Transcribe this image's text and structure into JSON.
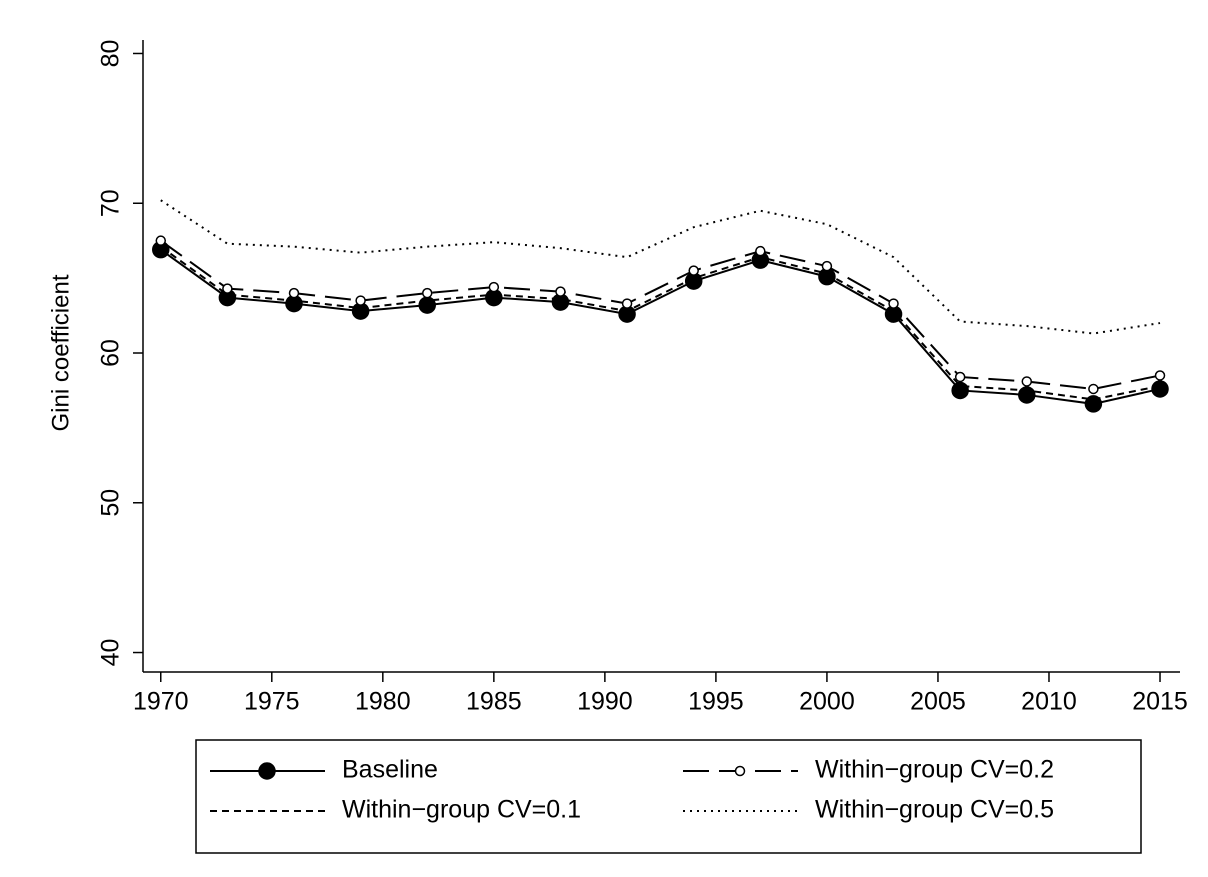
{
  "chart_data": {
    "type": "line",
    "ylabel": "Gini coefficient",
    "x": [
      1970,
      1973,
      1976,
      1979,
      1982,
      1985,
      1988,
      1991,
      1994,
      1997,
      2000,
      2003,
      2006,
      2009,
      2012,
      2015
    ],
    "xlim": [
      1969.2,
      2015.9
    ],
    "xticks": [
      1970,
      1975,
      1980,
      1985,
      1990,
      1995,
      2000,
      2005,
      2010,
      2015
    ],
    "ylim": [
      38.7,
      80.9
    ],
    "yticks": [
      40,
      50,
      60,
      70,
      80
    ],
    "grid": false,
    "legend": "bottom",
    "series": [
      {
        "name": "Baseline",
        "color": "#000000",
        "dash": "solid",
        "marker": "filled",
        "values": [
          66.9,
          63.7,
          63.3,
          62.8,
          63.2,
          63.7,
          63.4,
          62.6,
          64.8,
          66.2,
          65.1,
          62.6,
          57.5,
          57.2,
          56.6,
          57.6
        ]
      },
      {
        "name": "Within−group CV=0.2",
        "color": "#000000",
        "dash": "longdash",
        "marker": "hollow",
        "values": [
          67.5,
          64.3,
          64.0,
          63.5,
          64.0,
          64.4,
          64.1,
          63.3,
          65.5,
          66.8,
          65.8,
          63.3,
          58.4,
          58.1,
          57.6,
          58.5
        ]
      },
      {
        "name": "Within−group CV=0.1",
        "color": "#000000",
        "dash": "shortdash",
        "marker": "none",
        "values": [
          67.1,
          63.9,
          63.5,
          63.0,
          63.5,
          63.9,
          63.6,
          62.8,
          65.0,
          66.4,
          65.3,
          62.8,
          57.8,
          57.5,
          56.9,
          57.8
        ]
      },
      {
        "name": "Within−group CV=0.5",
        "color": "#000000",
        "dash": "dotted",
        "marker": "none",
        "values": [
          70.2,
          67.3,
          67.1,
          66.7,
          67.1,
          67.4,
          67.0,
          66.4,
          68.4,
          69.5,
          68.6,
          66.4,
          62.1,
          61.8,
          61.3,
          62.0
        ]
      }
    ]
  }
}
